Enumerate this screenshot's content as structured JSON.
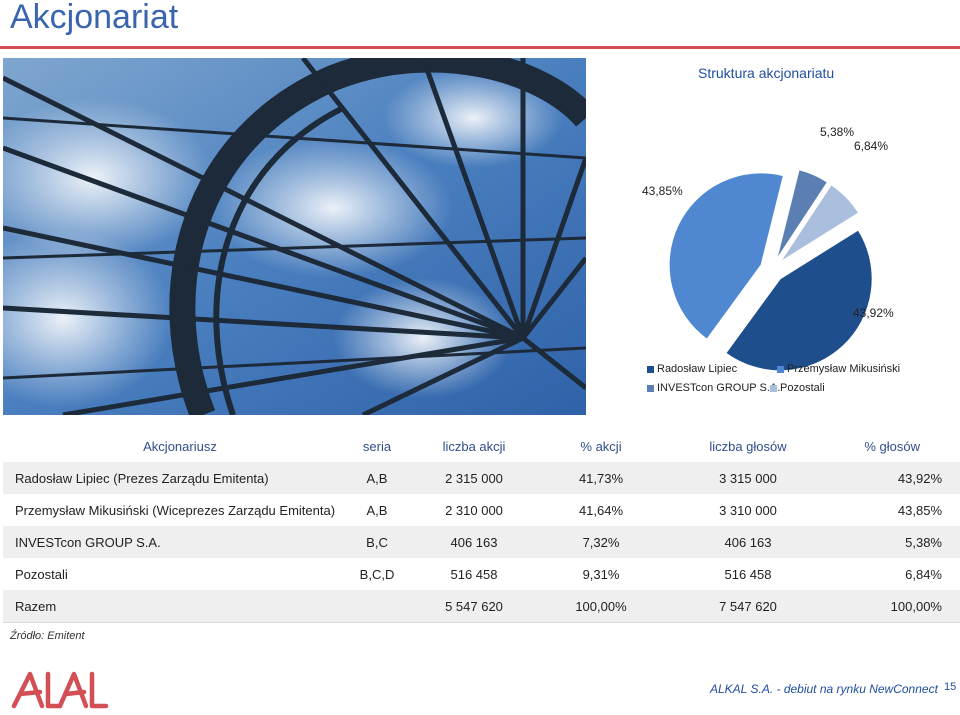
{
  "page": {
    "title": "Akcjonariat",
    "source": "Źródło: Emitent",
    "footer_text": "ALKAL S.A. - debiut na rynku NewConnect",
    "page_number": "15"
  },
  "colors": {
    "accent_red": "#d24f55",
    "title_blue": "#3a64ae",
    "pie_dark": "#1f4e8c",
    "pie_mid": "#4f88d0",
    "pie_steel": "#5b7fb3",
    "pie_light": "#a9bfdd"
  },
  "chart_data": {
    "type": "pie",
    "title": "Struktura akcjonariatu",
    "slices": [
      {
        "name": "Radosław Lipiec",
        "value": 43.92,
        "label": "43,92%",
        "color": "#1f4e8c"
      },
      {
        "name": "Przemysław Mikusiński",
        "value": 43.85,
        "label": "43,85%",
        "color": "#4f88d0"
      },
      {
        "name": "INVESTcon GROUP S.A.",
        "value": 5.38,
        "label": "5,38%",
        "color": "#5b7fb3"
      },
      {
        "name": "Pozostali",
        "value": 6.84,
        "label": "6,84%",
        "color": "#a9bfdd"
      }
    ],
    "legend": {
      "position": "bottom"
    }
  },
  "table": {
    "headers": [
      "Akcjonariusz",
      "seria",
      "liczba akcji",
      "% akcji",
      "liczba głosów",
      "% głosów"
    ],
    "rows": [
      [
        "Radosław Lipiec (Prezes Zarządu Emitenta)",
        "A,B",
        "2 315 000",
        "41,73%",
        "3 315 000",
        "43,92%"
      ],
      [
        "Przemysław Mikusiński (Wiceprezes Zarządu Emitenta)",
        "A,B",
        "2 310 000",
        "41,64%",
        "3 310 000",
        "43,85%"
      ],
      [
        "INVESTcon GROUP S.A.",
        "B,C",
        "406 163",
        "7,32%",
        "406 163",
        "5,38%"
      ],
      [
        "Pozostali",
        "B,C,D",
        "516 458",
        "9,31%",
        "516 458",
        "6,84%"
      ],
      [
        "Razem",
        "",
        "5 547 620",
        "100,00%",
        "7 547 620",
        "100,00%"
      ]
    ]
  }
}
